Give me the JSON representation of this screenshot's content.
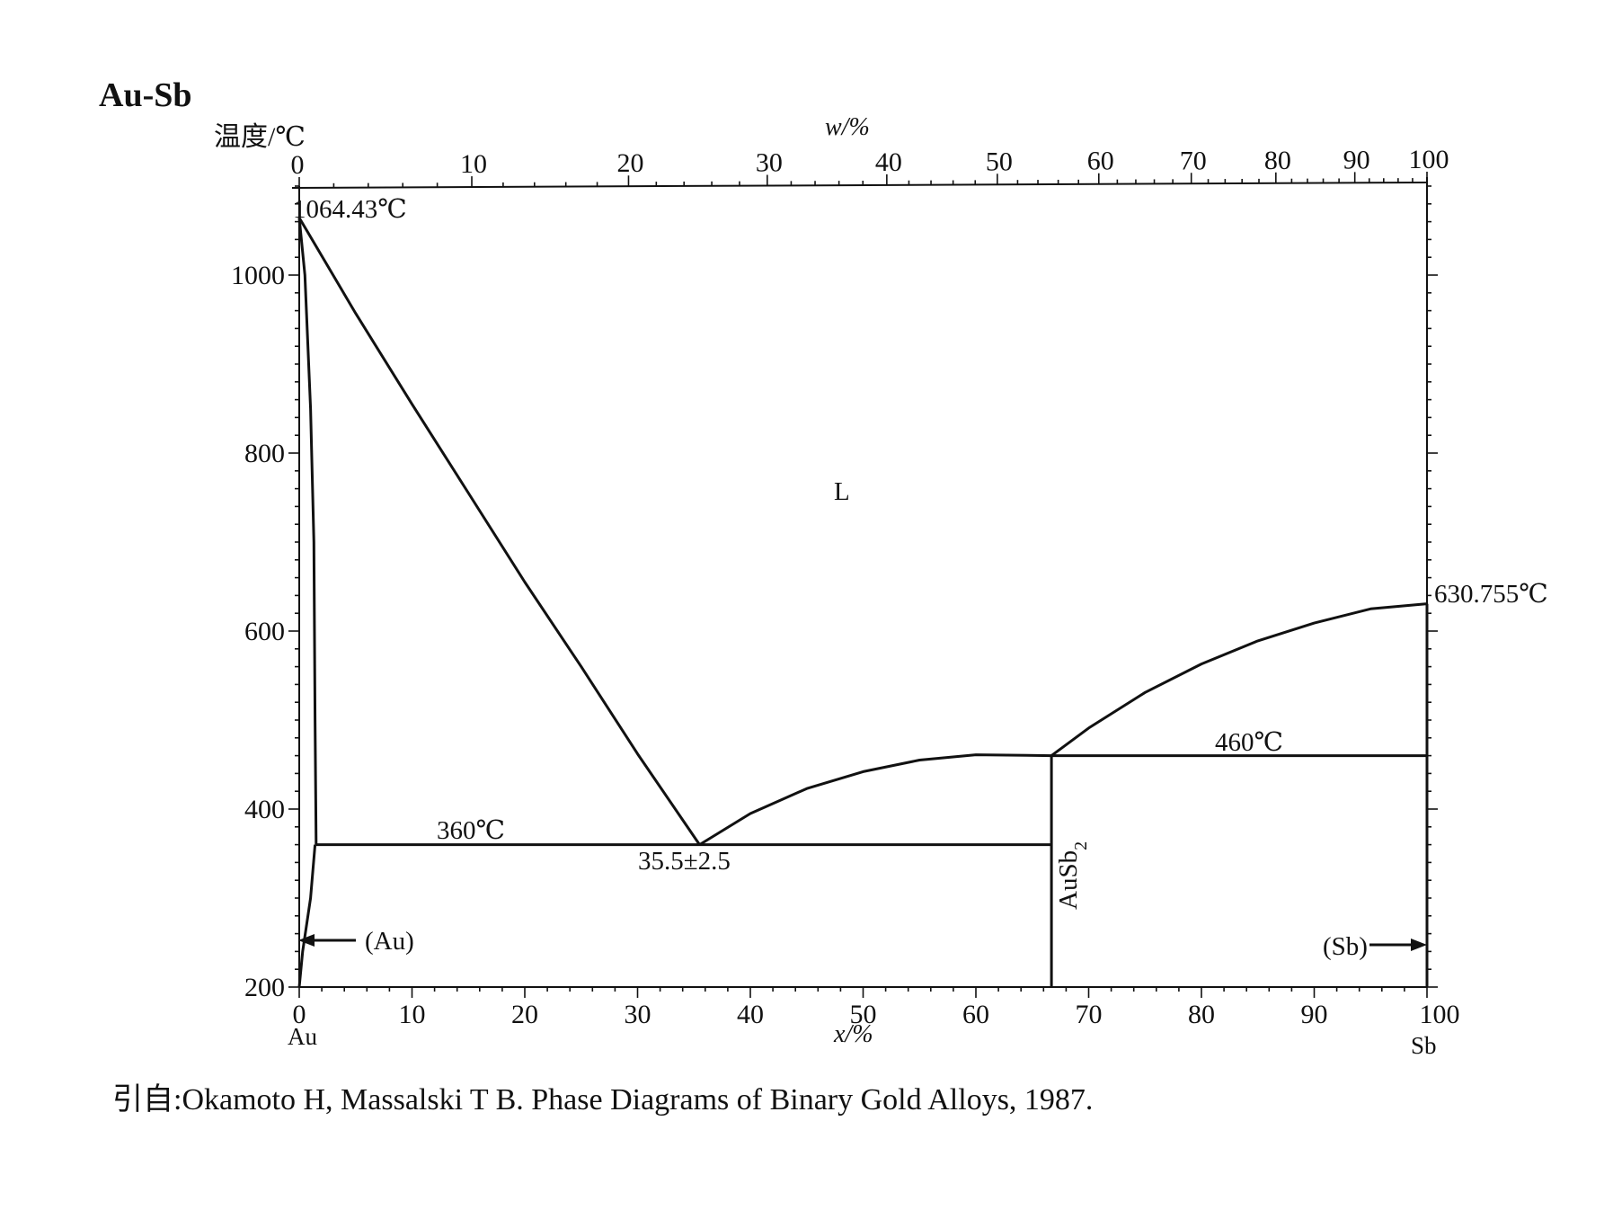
{
  "title": "Au-Sb",
  "caption": "引自:Okamoto H, Massalski T B. Phase Diagrams of Binary Gold Alloys, 1987.",
  "chart_data": {
    "type": "line",
    "title": "Au-Sb",
    "ylabel": "温度/℃",
    "xlabel_bottom": "x/%",
    "xlabel_top": "w/%",
    "ylim": [
      200,
      1100
    ],
    "xlim": [
      0,
      100
    ],
    "grid": false,
    "y_ticks": [
      200,
      400,
      600,
      800,
      1000
    ],
    "x_ticks_bottom": [
      0,
      10,
      20,
      30,
      40,
      50,
      60,
      70,
      80,
      90,
      100
    ],
    "x_ticks_top": [
      0,
      10,
      20,
      30,
      40,
      50,
      60,
      70,
      80,
      90,
      100
    ],
    "top_axis_positions_x": [
      0,
      15.3,
      29.2,
      41.5,
      52.1,
      61.9,
      70.9,
      79.1,
      86.6,
      93.6,
      100
    ],
    "bottom_endpoint_labels": {
      "left": "Au",
      "right": "Sb"
    },
    "series": [
      {
        "x": [
          0,
          0.5,
          1.0,
          1.3,
          1.4,
          1.5
        ],
        "y": [
          1064.43,
          1000,
          850,
          700,
          500,
          360
        ]
      },
      {
        "x": [
          0,
          5,
          10,
          15,
          20,
          25,
          30,
          35.5
        ],
        "y": [
          1064.43,
          957,
          855,
          755,
          655,
          560,
          462,
          360
        ]
      },
      {
        "x": [
          35.5,
          40,
          45,
          50,
          55,
          60,
          66.7
        ],
        "y": [
          360,
          395,
          423,
          442,
          455,
          461,
          460
        ]
      },
      {
        "x": [
          66.7,
          70,
          75,
          80,
          85,
          90,
          95,
          100
        ],
        "y": [
          460,
          491,
          531,
          563,
          589,
          609,
          625,
          630.755
        ]
      },
      {
        "x": [
          1.4,
          66.7
        ],
        "y": [
          360,
          360
        ]
      },
      {
        "x": [
          66.7,
          100
        ],
        "y": [
          460,
          460
        ]
      },
      {
        "x": [
          66.7,
          66.7
        ],
        "y": [
          460,
          200
        ]
      },
      {
        "x": [
          100,
          100
        ],
        "y": [
          630.755,
          200
        ]
      },
      {
        "x": [
          1.4,
          1.0,
          0.3,
          0.0
        ],
        "y": [
          360,
          300,
          240,
          200
        ]
      }
    ],
    "annotations": {
      "au_melting": "1064.43℃",
      "sb_melting": "630.755℃",
      "liquid": "L",
      "eutectic_temp_1": "360℃",
      "eutectic_comp": "35.5±2.5",
      "eutectic_temp_2": "460℃",
      "compound": "AuSb",
      "compound_sub": "2",
      "au_phase": "(Au)",
      "sb_phase": "(Sb)"
    }
  }
}
